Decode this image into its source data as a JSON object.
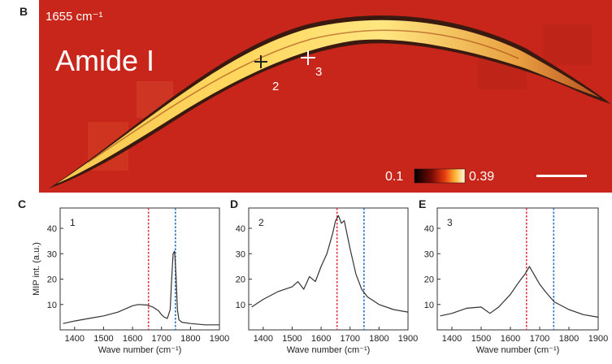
{
  "image_panel": {
    "letter": "B",
    "wavenumber_label": "1655 cm⁻¹",
    "title": "Amide I",
    "scale_min": "0.1",
    "scale_max": "0.39",
    "markers": [
      {
        "label": "2"
      },
      {
        "label": "3"
      }
    ],
    "colors": {
      "background": "#c8261a",
      "worm_bright": "#ffe27a",
      "worm_edge": "#3a1a10"
    }
  },
  "chart_data": [
    {
      "type": "line",
      "panel": "C",
      "trace_label": "1",
      "xlabel": "Wave number (cm⁻¹)",
      "ylabel": "MIP int. (a.u.)",
      "xlim": [
        1350,
        1900
      ],
      "ylim": [
        0,
        48
      ],
      "xticks": [
        1400,
        1500,
        1600,
        1700,
        1800,
        1900
      ],
      "yticks": [
        10,
        20,
        30,
        40
      ],
      "vlines": [
        {
          "x": 1655,
          "color": "#e0323c"
        },
        {
          "x": 1748,
          "color": "#2a6fc9"
        }
      ],
      "x": [
        1360,
        1400,
        1450,
        1500,
        1550,
        1600,
        1620,
        1650,
        1670,
        1690,
        1700,
        1710,
        1720,
        1730,
        1735,
        1740,
        1745,
        1750,
        1755,
        1760,
        1770,
        1800,
        1850,
        1900
      ],
      "y": [
        2.5,
        3.5,
        4.5,
        5.5,
        7,
        9.5,
        10,
        9.8,
        9,
        7.5,
        6,
        5,
        4.5,
        8,
        20,
        30,
        31,
        22,
        8,
        4,
        3,
        2.5,
        2,
        2
      ]
    },
    {
      "type": "line",
      "panel": "D",
      "trace_label": "2",
      "xlabel": "Wave number (cm⁻¹)",
      "ylabel": "",
      "xlim": [
        1350,
        1900
      ],
      "ylim": [
        0,
        48
      ],
      "xticks": [
        1400,
        1500,
        1600,
        1700,
        1800,
        1900
      ],
      "yticks": [
        10,
        20,
        30,
        40
      ],
      "vlines": [
        {
          "x": 1655,
          "color": "#e0323c"
        },
        {
          "x": 1748,
          "color": "#2a6fc9"
        }
      ],
      "x": [
        1360,
        1400,
        1450,
        1500,
        1520,
        1540,
        1560,
        1580,
        1600,
        1620,
        1640,
        1650,
        1660,
        1670,
        1680,
        1700,
        1720,
        1740,
        1760,
        1800,
        1850,
        1900
      ],
      "y": [
        9,
        12,
        15,
        17,
        19,
        16,
        21,
        19,
        25,
        30,
        38,
        43,
        45,
        42,
        43,
        32,
        22,
        16,
        13,
        10,
        8,
        7
      ]
    },
    {
      "type": "line",
      "panel": "E",
      "trace_label": "3",
      "xlabel": "Wave number (cm⁻¹)",
      "ylabel": "",
      "xlim": [
        1350,
        1900
      ],
      "ylim": [
        0,
        48
      ],
      "xticks": [
        1400,
        1500,
        1600,
        1700,
        1800,
        1900
      ],
      "yticks": [
        10,
        20,
        30,
        40
      ],
      "vlines": [
        {
          "x": 1655,
          "color": "#e0323c"
        },
        {
          "x": 1748,
          "color": "#2a6fc9"
        }
      ],
      "x": [
        1360,
        1400,
        1450,
        1500,
        1530,
        1560,
        1600,
        1630,
        1650,
        1665,
        1680,
        1700,
        1720,
        1750,
        1800,
        1850,
        1900
      ],
      "y": [
        5.5,
        6.5,
        8.5,
        9,
        6.5,
        9,
        14,
        19,
        22,
        25,
        22,
        18,
        15,
        11,
        8,
        6,
        5
      ]
    }
  ]
}
